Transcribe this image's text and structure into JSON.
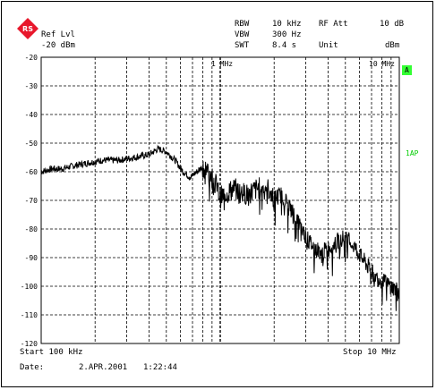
{
  "header": {
    "ref_lvl_label": "Ref Lvl",
    "ref_lvl_value": "-20 dBm",
    "rbw_label": "RBW",
    "rbw_value": "10 kHz",
    "vbw_label": "VBW",
    "vbw_value": "300 Hz",
    "swt_label": "SWT",
    "swt_value": "8.4 s",
    "rf_att_label": "RF Att",
    "rf_att_value": "10 dB",
    "unit_label": "Unit",
    "unit_value": "dBm"
  },
  "markers": {
    "one_mhz": "1 MHz",
    "ten_mhz": "10 MHz"
  },
  "badges": {
    "trace_a": "A",
    "lap": "1AP"
  },
  "footer": {
    "start": "Start 100 kHz",
    "stop": "Stop 10 MHz",
    "date_label": "Date:",
    "date_value": "2.APR.2001",
    "time_value": "1:22:44"
  },
  "colors": {
    "trace": "#000000",
    "grid": "#000000",
    "badge_bg": "#33ff33",
    "logo": "#e8182c"
  },
  "chart_data": {
    "type": "line",
    "x_scale": "log",
    "xlim_hz": [
      100000,
      10000000
    ],
    "ylim": [
      -120,
      -20
    ],
    "y_ticks": [
      -20,
      -30,
      -40,
      -50,
      -60,
      -70,
      -80,
      -90,
      -100,
      -110,
      -120
    ],
    "y_tick_labels": [
      "-20",
      "-30",
      "-40",
      "-50",
      "-60",
      "-70",
      "-80",
      "-90",
      "-100",
      "-110",
      "-120"
    ],
    "grid": true,
    "series": [
      {
        "x_hz": [
          100000,
          115000,
          130000,
          150000,
          180000,
          220000,
          270000,
          330000,
          400000,
          450000,
          500000,
          560000,
          620000,
          680000,
          740000,
          800000,
          860000,
          930000,
          1000000,
          1100000,
          1200000,
          1400000,
          1600000,
          1800000,
          2000000,
          2200000,
          2500000,
          2800000,
          3100000,
          3400000,
          3700000,
          4000000,
          4400000,
          4800000,
          5200000,
          5600000,
          6000000,
          6500000,
          7000000,
          7500000,
          8000000,
          8500000,
          9000000,
          10000000
        ],
        "y_dbm": [
          -60,
          -59,
          -59,
          -58,
          -57,
          -56,
          -56,
          -55,
          -54,
          -52,
          -53,
          -56,
          -60,
          -62,
          -60,
          -58,
          -60,
          -63,
          -69,
          -67,
          -66,
          -68,
          -66,
          -65,
          -69,
          -68,
          -73,
          -79,
          -84,
          -87,
          -88,
          -87,
          -85,
          -83,
          -84,
          -86,
          -89,
          -92,
          -95,
          -97,
          -98,
          -99,
          -100,
          -102
        ]
      }
    ]
  }
}
